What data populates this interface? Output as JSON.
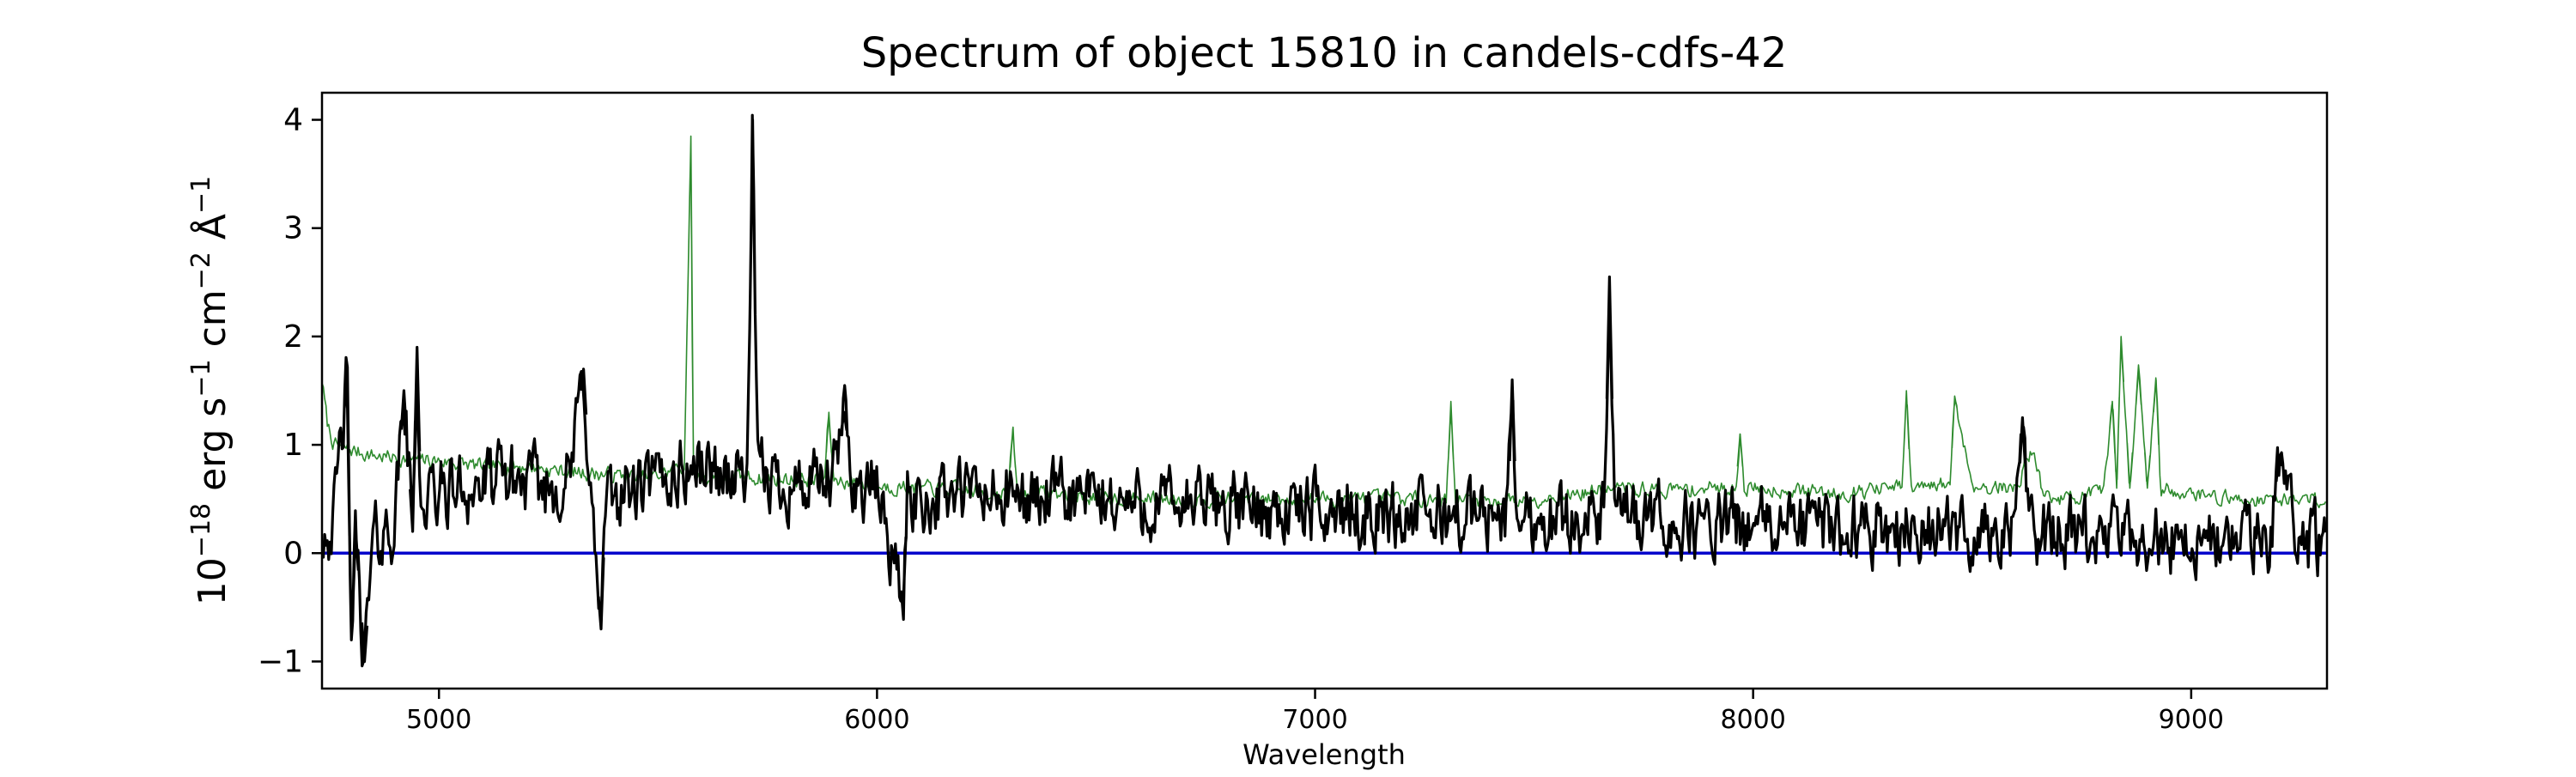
{
  "chart_data": {
    "type": "line",
    "title": "Spectrum of object 15810 in candels-cdfs-42",
    "xlabel": "Wavelength",
    "ylabel": {
      "base": "10",
      "exp1": "−18",
      "erg": " erg s",
      "exp2": "−1",
      "cm": " cm",
      "exp3": "−2",
      "ang": " Å",
      "exp4": "−1"
    },
    "xlim": [
      4733,
      9310
    ],
    "ylim": [
      -1.25,
      4.25
    ],
    "x_ticks": [
      5000,
      6000,
      7000,
      8000,
      9000
    ],
    "x_tick_labels": [
      "5000",
      "6000",
      "7000",
      "8000",
      "9000"
    ],
    "y_ticks": [
      -1,
      0,
      1,
      2,
      3,
      4
    ],
    "y_tick_labels": [
      "−1",
      "0",
      "1",
      "2",
      "3",
      "4"
    ],
    "grid": false,
    "legend": "none",
    "colors": {
      "spectrum": "#000000",
      "contamination": "#2e8b2e",
      "zero_line": "#0000cc"
    },
    "series": [
      {
        "role": "spectrum",
        "color": "#000000",
        "noise_amplitude": 0.28,
        "x": [
          4733,
          4760,
          4790,
          4800,
          4810,
          4830,
          4850,
          4880,
          4900,
          4920,
          4940,
          4950,
          4960,
          4975,
          5000,
          5050,
          5100,
          5150,
          5200,
          5250,
          5300,
          5330,
          5350,
          5370,
          5380,
          5420,
          5450,
          5500,
          5550,
          5580,
          5600,
          5640,
          5680,
          5705,
          5716,
          5727,
          5750,
          5800,
          5850,
          5900,
          5925,
          5950,
          6000,
          6060,
          6070,
          6100,
          6200,
          6300,
          6400,
          6500,
          6600,
          6700,
          6800,
          6900,
          7000,
          7100,
          7200,
          7300,
          7400,
          7440,
          7450,
          7460,
          7500,
          7600,
          7660,
          7672,
          7684,
          7700,
          7800,
          7900,
          8000,
          8100,
          8200,
          8300,
          8400,
          8500,
          8600,
          8615,
          8630,
          8700,
          8800,
          8900,
          9000,
          9100,
          9180,
          9200,
          9250,
          9310
        ],
        "y": [
          0.25,
          0.3,
          1.6,
          -0.8,
          0.2,
          -1.0,
          0.1,
          0.2,
          0.3,
          1.5,
          0.2,
          1.9,
          0.3,
          0.5,
          0.55,
          0.6,
          0.6,
          0.7,
          0.65,
          0.6,
          0.7,
          1.7,
          0.3,
          -0.7,
          0.4,
          0.6,
          0.55,
          0.65,
          0.75,
          0.8,
          0.8,
          0.75,
          0.7,
          0.8,
          4.0,
          0.7,
          0.7,
          0.65,
          0.6,
          0.65,
          1.3,
          0.6,
          0.6,
          -0.45,
          0.55,
          0.5,
          0.55,
          0.5,
          0.5,
          0.5,
          0.45,
          0.45,
          0.45,
          0.4,
          0.4,
          0.38,
          0.35,
          0.35,
          0.35,
          0.35,
          1.6,
          0.35,
          0.3,
          0.35,
          0.3,
          2.55,
          0.3,
          0.3,
          0.28,
          0.25,
          0.25,
          0.25,
          0.25,
          0.25,
          0.2,
          0.2,
          0.2,
          1.25,
          0.2,
          0.15,
          0.15,
          0.15,
          0.1,
          0.1,
          0.1,
          0.9,
          0.1,
          0.1
        ]
      },
      {
        "role": "contamination",
        "color": "#2e8b2e",
        "noise_amplitude": 0.06,
        "x": [
          4733,
          4745,
          4760,
          4800,
          4850,
          4900,
          5000,
          5100,
          5200,
          5300,
          5400,
          5480,
          5500,
          5560,
          5575,
          5580,
          5590,
          5600,
          5700,
          5800,
          5880,
          5890,
          5900,
          6000,
          6100,
          6200,
          6300,
          6310,
          6320,
          6400,
          6500,
          6600,
          6700,
          6800,
          6900,
          7000,
          7100,
          7200,
          7300,
          7310,
          7320,
          7400,
          7500,
          7600,
          7700,
          7800,
          7900,
          7960,
          7970,
          7980,
          8000,
          8100,
          8200,
          8300,
          8340,
          8350,
          8360,
          8400,
          8450,
          8460,
          8500,
          8600,
          8640,
          8660,
          8700,
          8800,
          8820,
          8830,
          8840,
          8860,
          8880,
          8900,
          8920,
          8930,
          9000,
          9100,
          9200,
          9310
        ],
        "y": [
          1.6,
          1.2,
          1.0,
          0.95,
          0.9,
          0.88,
          0.85,
          0.8,
          0.8,
          0.75,
          0.72,
          0.7,
          0.72,
          0.8,
          3.85,
          0.8,
          0.72,
          0.7,
          0.7,
          0.68,
          0.68,
          1.3,
          0.68,
          0.62,
          0.6,
          0.58,
          0.55,
          1.15,
          0.55,
          0.55,
          0.52,
          0.5,
          0.5,
          0.5,
          0.5,
          0.5,
          0.5,
          0.5,
          0.5,
          1.4,
          0.5,
          0.48,
          0.5,
          0.55,
          0.6,
          0.58,
          0.6,
          0.6,
          1.1,
          0.6,
          0.6,
          0.58,
          0.55,
          0.6,
          0.6,
          1.5,
          0.6,
          0.6,
          0.65,
          1.45,
          0.62,
          0.6,
          1.0,
          0.55,
          0.5,
          0.55,
          1.4,
          0.6,
          2.0,
          0.6,
          1.7,
          0.6,
          1.6,
          0.6,
          0.55,
          0.5,
          0.5,
          0.5
        ]
      },
      {
        "role": "zero-line",
        "color": "#0000cc",
        "x": [
          4733,
          9310
        ],
        "y": [
          0,
          0
        ]
      }
    ]
  }
}
